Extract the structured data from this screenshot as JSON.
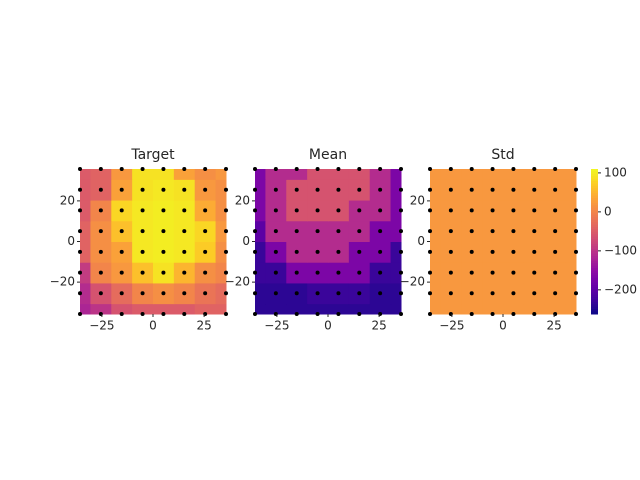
{
  "chart_data": [
    {
      "type": "contour",
      "title": "Target",
      "x": [
        -35.7,
        -25.5,
        -15.3,
        -5.1,
        5.1,
        15.3,
        25.5,
        35.7
      ],
      "y": [
        -35.7,
        -25.5,
        -15.3,
        -5.1,
        5.1,
        15.3,
        25.5,
        35.7
      ],
      "z": [
        [
          -120,
          -100,
          -60,
          -50,
          -50,
          -50,
          -40,
          -40
        ],
        [
          -110,
          -60,
          -30,
          0,
          10,
          0,
          -20,
          -30
        ],
        [
          -90,
          0,
          20,
          60,
          90,
          50,
          10,
          0
        ],
        [
          -40,
          10,
          30,
          95,
          100,
          95,
          70,
          10
        ],
        [
          -40,
          10,
          60,
          95,
          100,
          95,
          80,
          20
        ],
        [
          -50,
          0,
          80,
          95,
          100,
          95,
          40,
          10
        ],
        [
          -50,
          -40,
          30,
          90,
          95,
          90,
          20,
          10
        ],
        [
          -50,
          -40,
          20,
          90,
          90,
          30,
          10,
          20
        ]
      ],
      "xlim": [
        -35.7,
        35.7
      ],
      "ylim": [
        -35.7,
        35.7
      ],
      "xticks": [
        {
          "value": -25,
          "label": "−25"
        },
        0,
        25
      ],
      "yticks": [
        {
          "value": -20,
          "label": "−20"
        },
        0,
        20
      ]
    },
    {
      "type": "contour",
      "title": "Mean",
      "x": [
        -35.7,
        -25.5,
        -15.3,
        -5.1,
        5.1,
        15.3,
        25.5,
        35.7
      ],
      "y": [
        -35.7,
        -25.5,
        -15.3,
        -5.1,
        5.1,
        15.3,
        25.5,
        35.7
      ],
      "z": [
        [
          -240,
          -240,
          -240,
          -240,
          -240,
          -240,
          -240,
          -240
        ],
        [
          -240,
          -240,
          -240,
          -230,
          -230,
          -230,
          -240,
          -240
        ],
        [
          -230,
          -230,
          -170,
          -170,
          -170,
          -170,
          -230,
          -230
        ],
        [
          -230,
          -170,
          -110,
          -110,
          -110,
          -170,
          -170,
          -230
        ],
        [
          -200,
          -110,
          -110,
          -110,
          -110,
          -110,
          -170,
          -170
        ],
        [
          -170,
          -110,
          -60,
          -60,
          -60,
          -110,
          -110,
          -170
        ],
        [
          -170,
          -110,
          -60,
          -60,
          -60,
          -60,
          -110,
          -170
        ],
        [
          -170,
          -110,
          -110,
          -60,
          -60,
          -60,
          -110,
          -170
        ]
      ],
      "xlim": [
        -35.7,
        35.7
      ],
      "ylim": [
        -35.7,
        35.7
      ],
      "xticks": [
        {
          "value": -25,
          "label": "−25"
        },
        0,
        25
      ],
      "yticks": [
        {
          "value": -20,
          "label": "−20"
        },
        0,
        20
      ]
    },
    {
      "type": "contour",
      "title": "Std",
      "x": [
        -35.7,
        -25.5,
        -15.3,
        -5.1,
        5.1,
        15.3,
        25.5,
        35.7
      ],
      "y": [
        -35.7,
        -25.5,
        -15.3,
        -5.1,
        5.1,
        15.3,
        25.5,
        35.7
      ],
      "z": [
        [
          20,
          20,
          20,
          20,
          20,
          20,
          20,
          20
        ],
        [
          20,
          20,
          20,
          20,
          20,
          20,
          20,
          20
        ],
        [
          20,
          20,
          20,
          20,
          20,
          20,
          20,
          20
        ],
        [
          20,
          20,
          20,
          20,
          20,
          20,
          20,
          20
        ],
        [
          20,
          20,
          20,
          20,
          20,
          20,
          20,
          20
        ],
        [
          20,
          20,
          20,
          20,
          20,
          20,
          20,
          20
        ],
        [
          20,
          20,
          20,
          20,
          20,
          20,
          20,
          20
        ],
        [
          20,
          20,
          20,
          20,
          20,
          20,
          20,
          20
        ]
      ],
      "xlim": [
        -35.7,
        35.7
      ],
      "ylim": [
        -35.7,
        35.7
      ],
      "xticks": [
        {
          "value": -25,
          "label": "−25"
        },
        0,
        25
      ],
      "yticks": [
        {
          "value": -20,
          "label": "−20"
        },
        0,
        20
      ]
    }
  ],
  "colorbar": {
    "colormap": "plasma",
    "clim": [
      -262,
      110
    ],
    "ticks": [
      100,
      0,
      {
        "value": -100,
        "label": "−100"
      },
      {
        "value": -200,
        "label": "−200"
      }
    ]
  }
}
